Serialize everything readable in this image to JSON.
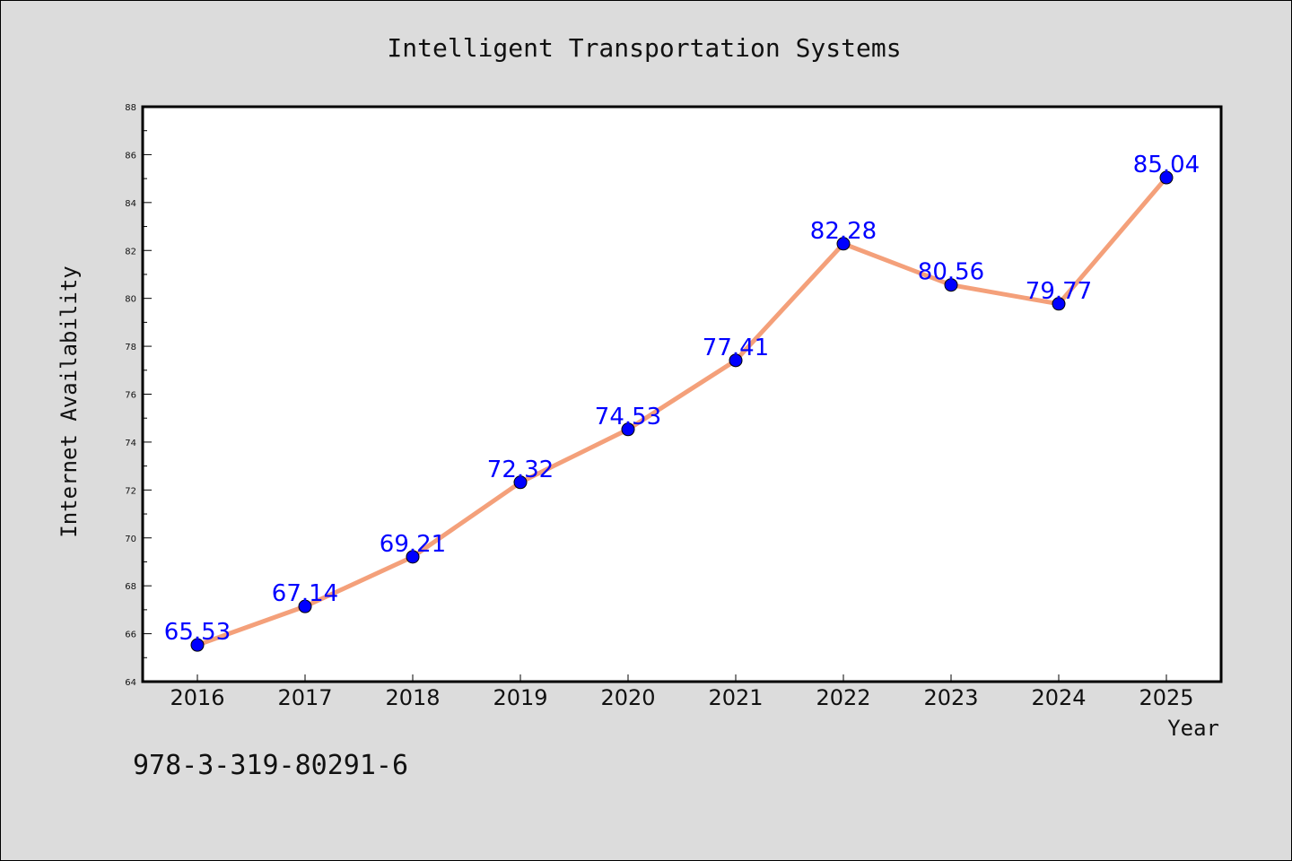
{
  "chart_data": {
    "type": "line",
    "title": "Intelligent Transportation Systems",
    "xlabel": "Year",
    "ylabel": "Internet Availability",
    "categories": [
      "2016",
      "2017",
      "2018",
      "2019",
      "2020",
      "2021",
      "2022",
      "2023",
      "2024",
      "2025"
    ],
    "values": [
      65.53,
      67.14,
      69.21,
      72.32,
      74.53,
      77.41,
      82.28,
      80.56,
      79.77,
      85.04
    ],
    "value_labels": [
      "65.53",
      "67.14",
      "69.21",
      "72.32",
      "74.53",
      "77.41",
      "82.28",
      "80.56",
      "79.77",
      "85.04"
    ],
    "ylim": [
      64,
      88
    ],
    "yticks": [
      "64",
      "66",
      "68",
      "70",
      "72",
      "74",
      "76",
      "78",
      "80",
      "82",
      "84",
      "86",
      "88"
    ],
    "grid": false,
    "legend": "none",
    "line_color": "#f4a07a",
    "marker_color": "#0000ff",
    "label_color": "#0000ff"
  },
  "footnote": "978-3-319-80291-6"
}
